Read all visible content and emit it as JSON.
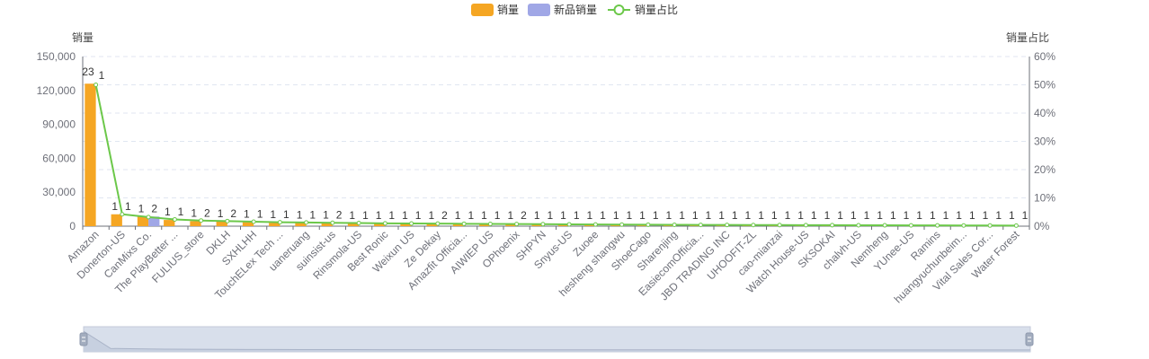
{
  "legend": {
    "items": [
      {
        "label": "销量",
        "color": "#f5a623",
        "kind": "bar"
      },
      {
        "label": "新品销量",
        "color": "#a0a7e6",
        "kind": "bar"
      },
      {
        "label": "销量占比",
        "color": "#6cc84a",
        "kind": "line"
      }
    ]
  },
  "chart_data": {
    "type": "bar",
    "y_left_name": "销量",
    "y_right_name": "销量占比",
    "y_left_ticks": [
      "0",
      "30,000",
      "60,000",
      "90,000",
      "120,000",
      "150,000"
    ],
    "y_right_ticks": [
      "0%",
      "10%",
      "20%",
      "30%",
      "40%",
      "50%",
      "60%"
    ],
    "ylim_left": [
      0,
      150000
    ],
    "ylim_right": [
      0,
      60
    ],
    "grid": true,
    "legend_position": "top-center",
    "categories": [
      "Amazon",
      "Donerton-US",
      "CanMixs Co.",
      "The PlayBetter ...",
      "FULIUS_store",
      "DKLH",
      "SXHLHH",
      "TouchELex Tech ...",
      "uaneruang",
      "suinsist-us",
      "Rinsmola-US",
      "Best Ronic",
      "Weixun US",
      "Ze Dekay",
      "Amazfit Officia...",
      "AIWIEP US",
      "OPhoenix",
      "SHPYN",
      "Snyus-US",
      "Zuoee",
      "hesheng shangwu",
      "ShoeCago",
      "Sharenjing",
      "EasiecomOfficia...",
      "JBD TRADING INC",
      "UHOOFIT-ZL",
      "cao-mianzai",
      "Watch House-US",
      "SKSOKAI",
      "chalvh-US",
      "Nemheng",
      "YUnee-US",
      "Ramins",
      "huangyuchunbeim...",
      "Vital Sales Cor...",
      "Water Forest"
    ],
    "series": [
      {
        "name": "销量",
        "values": [
          126000,
          10500,
          8500,
          5500,
          4500,
          4000,
          3500,
          3000,
          2800,
          2600,
          2400,
          2200,
          2000,
          1800,
          1600,
          1500,
          1400,
          1300,
          1200,
          1100,
          1000,
          950,
          900,
          850,
          800,
          750,
          700,
          650,
          600,
          550,
          500,
          450,
          400,
          350,
          300,
          250
        ]
      },
      {
        "name": "新品销量",
        "values": [
          0,
          0,
          8500,
          0,
          0,
          0,
          0,
          0,
          0,
          0,
          0,
          0,
          0,
          0,
          0,
          0,
          0,
          0,
          0,
          0,
          0,
          0,
          0,
          0,
          0,
          0,
          0,
          0,
          0,
          0,
          0,
          0,
          0,
          0,
          0,
          0
        ]
      },
      {
        "name": "销量占比",
        "values": [
          50,
          4.2,
          3.2,
          2.4,
          2.0,
          1.8,
          1.6,
          1.4,
          1.3,
          1.2,
          1.1,
          1.0,
          0.95,
          0.9,
          0.85,
          0.8,
          0.75,
          0.7,
          0.65,
          0.6,
          0.55,
          0.5,
          0.48,
          0.45,
          0.42,
          0.4,
          0.38,
          0.36,
          0.34,
          0.32,
          0.3,
          0.28,
          0.26,
          0.24,
          0.22,
          0.2
        ]
      }
    ],
    "data_labels": [
      "23",
      "1",
      "1",
      "1",
      "1",
      "2",
      "1",
      "1",
      "1",
      "2",
      "1",
      "2",
      "1",
      "1",
      "1",
      "1",
      "1",
      "1",
      "1",
      "2",
      "1",
      "1",
      "1",
      "1",
      "1",
      "1",
      "1",
      "2",
      "1",
      "1",
      "1",
      "1",
      "1",
      "2",
      "1",
      "1",
      "1",
      "1",
      "1",
      "1",
      "1",
      "1",
      "1",
      "1",
      "1",
      "1",
      "1",
      "1",
      "1",
      "1",
      "1",
      "1",
      "1",
      "1",
      "1",
      "1",
      "1",
      "1",
      "1",
      "1",
      "1",
      "1",
      "1",
      "1",
      "1",
      "1",
      "1",
      "1",
      "1",
      "1",
      "1",
      "1"
    ]
  }
}
